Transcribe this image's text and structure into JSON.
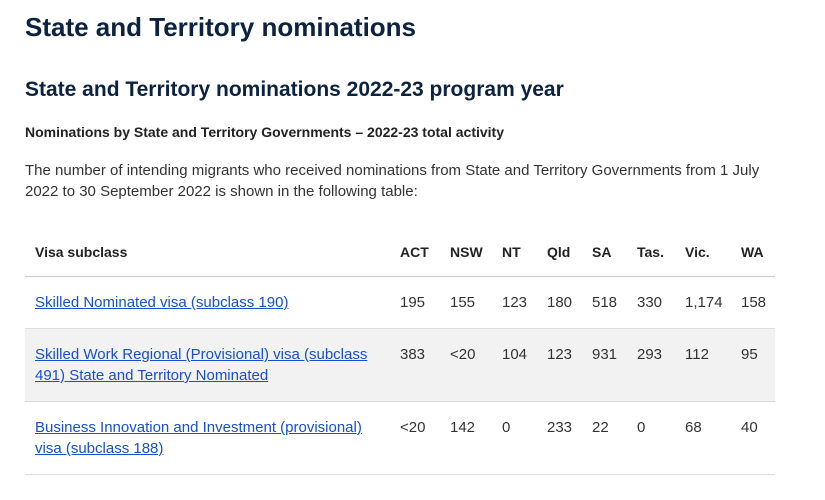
{
  "page": {
    "title": "State and Territory nominations",
    "subtitle": "State and Territory nominations 2022-23 program year",
    "section": "Nominations by State and Territory Governments – 2022-23 total activity",
    "intro": "The number of intending migrants who received nominations from State and Territory Governments from 1 July 2022 to 30 September 2022 is shown in the following table:"
  },
  "table": {
    "columns": [
      "Visa subclass",
      "ACT",
      "NSW",
      "NT",
      "Qld",
      "SA",
      "Tas.",
      "Vic.",
      "WA"
    ],
    "rows": [
      [
        "Skilled Nominated visa (subclass 190)",
        "195",
        "155",
        "123",
        "180",
        "518",
        "330",
        "1,174",
        "158"
      ],
      [
        "Skilled Work Regional (Provisional) visa (subclass 491) State and Territory Nominated",
        "383",
        "<20",
        "104",
        "123",
        "931",
        "293",
        "112",
        "95"
      ],
      [
        "Business Innovation and Investment (provisional) visa (subclass 188)",
        "<20",
        "142",
        "0",
        "233",
        "22",
        "0",
        "68",
        "40"
      ]
    ]
  }
}
